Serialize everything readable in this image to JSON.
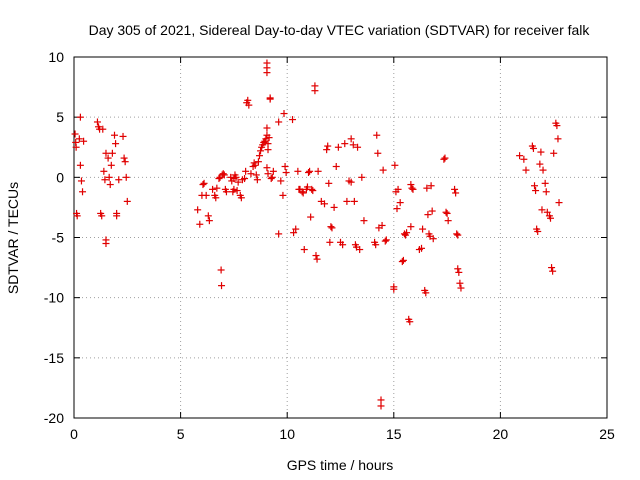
{
  "chart_data": {
    "type": "scatter",
    "title": "Day 305 of 2021, Sidereal Day-to-day VTEC variation (SDTVAR) for receiver falk",
    "xlabel": "GPS time / hours",
    "ylabel": "SDTVAR / TECUs",
    "xlim": [
      0,
      25
    ],
    "ylim": [
      -20,
      10
    ],
    "xticks": [
      0,
      5,
      10,
      15,
      20,
      25
    ],
    "yticks": [
      -20,
      -15,
      -10,
      -5,
      0,
      5,
      10
    ],
    "grid": true,
    "marker": "plus",
    "color": "#e00000",
    "series": [
      {
        "name": "SDTVAR",
        "points": [
          [
            0.05,
            3.6
          ],
          [
            0.08,
            2.9
          ],
          [
            0.1,
            2.5
          ],
          [
            0.12,
            -3.0
          ],
          [
            0.15,
            -3.2
          ],
          [
            0.25,
            3.2
          ],
          [
            0.3,
            5.0
          ],
          [
            0.3,
            1.0
          ],
          [
            0.35,
            -0.3
          ],
          [
            0.4,
            -1.2
          ],
          [
            0.45,
            3.0
          ],
          [
            1.1,
            4.6
          ],
          [
            1.15,
            4.2
          ],
          [
            1.2,
            4.0
          ],
          [
            1.25,
            -3.0
          ],
          [
            1.3,
            -3.2
          ],
          [
            1.35,
            4.0
          ],
          [
            1.4,
            0.5
          ],
          [
            1.45,
            -0.2
          ],
          [
            1.5,
            2.0
          ],
          [
            1.5,
            -5.2
          ],
          [
            1.5,
            -5.5
          ],
          [
            1.6,
            1.6
          ],
          [
            1.65,
            0.0
          ],
          [
            1.7,
            -0.6
          ],
          [
            1.75,
            1.0
          ],
          [
            1.8,
            2.0
          ],
          [
            1.9,
            3.5
          ],
          [
            1.95,
            2.8
          ],
          [
            2.0,
            -3.0
          ],
          [
            2.0,
            -3.2
          ],
          [
            2.1,
            -0.2
          ],
          [
            2.3,
            3.4
          ],
          [
            2.35,
            1.6
          ],
          [
            2.4,
            1.3
          ],
          [
            2.45,
            0.0
          ],
          [
            2.5,
            -2.0
          ],
          [
            5.8,
            -2.7
          ],
          [
            5.9,
            -3.9
          ],
          [
            6.0,
            -1.5
          ],
          [
            6.05,
            -0.6
          ],
          [
            6.1,
            -0.5
          ],
          [
            6.2,
            -1.5
          ],
          [
            6.3,
            -3.2
          ],
          [
            6.35,
            -3.6
          ],
          [
            6.5,
            -1.0
          ],
          [
            6.6,
            -1.5
          ],
          [
            6.65,
            -1.7
          ],
          [
            6.7,
            -0.9
          ],
          [
            6.8,
            -0.1
          ],
          [
            6.85,
            0.0
          ],
          [
            6.9,
            -7.7
          ],
          [
            6.92,
            -9.0
          ],
          [
            6.95,
            0.2
          ],
          [
            7.0,
            0.3
          ],
          [
            7.05,
            0.2
          ],
          [
            7.1,
            -1.0
          ],
          [
            7.15,
            -1.2
          ],
          [
            7.35,
            0.0
          ],
          [
            7.4,
            -0.3
          ],
          [
            7.45,
            -1.2
          ],
          [
            7.5,
            -1.0
          ],
          [
            7.5,
            -0.1
          ],
          [
            7.55,
            0.2
          ],
          [
            7.6,
            0.0
          ],
          [
            7.65,
            -1.1
          ],
          [
            7.7,
            -0.4
          ],
          [
            7.8,
            -1.5
          ],
          [
            7.85,
            -1.7
          ],
          [
            7.9,
            -0.2
          ],
          [
            8.0,
            -0.1
          ],
          [
            8.05,
            0.5
          ],
          [
            8.1,
            6.2
          ],
          [
            8.15,
            6.4
          ],
          [
            8.2,
            6.0
          ],
          [
            8.3,
            0.3
          ],
          [
            8.4,
            0.9
          ],
          [
            8.45,
            1.2
          ],
          [
            8.5,
            1.0
          ],
          [
            8.55,
            0.2
          ],
          [
            8.6,
            -0.2
          ],
          [
            8.65,
            1.3
          ],
          [
            8.7,
            1.8
          ],
          [
            8.75,
            2.2
          ],
          [
            8.8,
            2.5
          ],
          [
            8.85,
            2.7
          ],
          [
            8.9,
            2.9
          ],
          [
            8.95,
            3.0
          ],
          [
            9.0,
            3.2
          ],
          [
            9.05,
            0.8
          ],
          [
            9.1,
            0.3
          ],
          [
            9.15,
            3.3
          ],
          [
            9.2,
            6.5
          ],
          [
            9.2,
            6.6
          ],
          [
            9.25,
            -0.1
          ],
          [
            9.3,
            0.0
          ],
          [
            9.35,
            0.5
          ],
          [
            9.05,
            9.5
          ],
          [
            9.05,
            9.1
          ],
          [
            9.05,
            8.7
          ],
          [
            9.05,
            4.1
          ],
          [
            9.05,
            3.5
          ],
          [
            9.1,
            2.8
          ],
          [
            9.1,
            2.3
          ],
          [
            9.6,
            -4.7
          ],
          [
            9.6,
            4.6
          ],
          [
            9.7,
            -0.3
          ],
          [
            9.8,
            -1.5
          ],
          [
            9.85,
            5.3
          ],
          [
            9.9,
            0.9
          ],
          [
            9.95,
            0.4
          ],
          [
            10.25,
            4.8
          ],
          [
            10.3,
            -4.6
          ],
          [
            10.4,
            -4.3
          ],
          [
            10.5,
            0.5
          ],
          [
            10.55,
            -1.0
          ],
          [
            10.6,
            -1.0
          ],
          [
            10.7,
            -1.2
          ],
          [
            10.75,
            -1.3
          ],
          [
            10.8,
            -6.0
          ],
          [
            10.9,
            -1.0
          ],
          [
            10.95,
            -0.8
          ],
          [
            11.0,
            0.4
          ],
          [
            11.05,
            0.5
          ],
          [
            11.1,
            -3.3
          ],
          [
            11.15,
            -1.0
          ],
          [
            11.2,
            -1.1
          ],
          [
            11.3,
            7.6
          ],
          [
            11.3,
            7.2
          ],
          [
            11.35,
            -6.5
          ],
          [
            11.4,
            -6.8
          ],
          [
            11.45,
            0.5
          ],
          [
            11.6,
            -2.0
          ],
          [
            11.75,
            -2.2
          ],
          [
            11.85,
            2.3
          ],
          [
            11.9,
            2.6
          ],
          [
            11.95,
            -0.5
          ],
          [
            12.0,
            -5.4
          ],
          [
            12.05,
            -4.1
          ],
          [
            12.1,
            -4.2
          ],
          [
            12.2,
            -2.5
          ],
          [
            12.3,
            0.9
          ],
          [
            12.4,
            2.5
          ],
          [
            12.5,
            -5.4
          ],
          [
            12.6,
            -5.6
          ],
          [
            12.7,
            2.8
          ],
          [
            12.8,
            -2.0
          ],
          [
            12.9,
            -0.3
          ],
          [
            13.0,
            3.2
          ],
          [
            13.0,
            -0.4
          ],
          [
            13.1,
            2.7
          ],
          [
            13.15,
            -2.0
          ],
          [
            13.2,
            -5.6
          ],
          [
            13.25,
            -5.8
          ],
          [
            13.3,
            2.5
          ],
          [
            13.4,
            -6.0
          ],
          [
            13.5,
            0.0
          ],
          [
            13.6,
            -3.6
          ],
          [
            14.1,
            -5.4
          ],
          [
            14.15,
            -5.6
          ],
          [
            14.2,
            3.5
          ],
          [
            14.25,
            2.0
          ],
          [
            14.3,
            -4.2
          ],
          [
            14.4,
            -18.5
          ],
          [
            14.4,
            -19.0
          ],
          [
            14.45,
            -4.0
          ],
          [
            14.5,
            0.6
          ],
          [
            14.6,
            -5.3
          ],
          [
            14.65,
            -5.2
          ],
          [
            15.0,
            -9.1
          ],
          [
            15.0,
            -9.3
          ],
          [
            15.05,
            1.0
          ],
          [
            15.1,
            -1.2
          ],
          [
            15.15,
            -2.6
          ],
          [
            15.2,
            -1.0
          ],
          [
            15.3,
            -2.1
          ],
          [
            15.4,
            -7.0
          ],
          [
            15.45,
            -6.9
          ],
          [
            15.5,
            -4.7
          ],
          [
            15.55,
            -4.8
          ],
          [
            15.6,
            -4.6
          ],
          [
            15.7,
            -11.8
          ],
          [
            15.75,
            -12.0
          ],
          [
            15.8,
            -4.1
          ],
          [
            15.8,
            -0.6
          ],
          [
            15.85,
            -0.9
          ],
          [
            15.9,
            -1.0
          ],
          [
            16.2,
            -6.0
          ],
          [
            16.3,
            -5.9
          ],
          [
            16.35,
            -4.3
          ],
          [
            16.45,
            -9.4
          ],
          [
            16.5,
            -9.6
          ],
          [
            16.55,
            -0.9
          ],
          [
            16.6,
            -3.1
          ],
          [
            16.65,
            -4.7
          ],
          [
            16.7,
            -4.9
          ],
          [
            16.75,
            -0.7
          ],
          [
            16.8,
            -2.8
          ],
          [
            16.85,
            -5.1
          ],
          [
            17.35,
            1.5
          ],
          [
            17.4,
            1.6
          ],
          [
            17.45,
            -2.9
          ],
          [
            17.5,
            -3.0
          ],
          [
            17.55,
            -3.6
          ],
          [
            17.85,
            -1.0
          ],
          [
            17.9,
            -1.3
          ],
          [
            17.95,
            -4.7
          ],
          [
            18.0,
            -4.8
          ],
          [
            18.0,
            -7.6
          ],
          [
            18.05,
            -7.9
          ],
          [
            18.1,
            -8.8
          ],
          [
            18.15,
            -9.2
          ],
          [
            20.9,
            1.8
          ],
          [
            21.1,
            1.5
          ],
          [
            21.2,
            0.6
          ],
          [
            21.5,
            2.6
          ],
          [
            21.55,
            2.4
          ],
          [
            21.6,
            -0.7
          ],
          [
            21.65,
            -1.1
          ],
          [
            21.7,
            -4.3
          ],
          [
            21.75,
            -4.5
          ],
          [
            21.85,
            1.1
          ],
          [
            21.9,
            2.1
          ],
          [
            21.95,
            -2.7
          ],
          [
            22.0,
            0.6
          ],
          [
            22.1,
            -0.5
          ],
          [
            22.15,
            -1.2
          ],
          [
            22.2,
            -2.9
          ],
          [
            22.3,
            -3.2
          ],
          [
            22.35,
            -3.4
          ],
          [
            22.4,
            -7.5
          ],
          [
            22.45,
            -7.8
          ],
          [
            22.5,
            2.0
          ],
          [
            22.6,
            4.5
          ],
          [
            22.65,
            4.3
          ],
          [
            22.7,
            3.2
          ],
          [
            22.75,
            -2.1
          ]
        ]
      }
    ]
  }
}
